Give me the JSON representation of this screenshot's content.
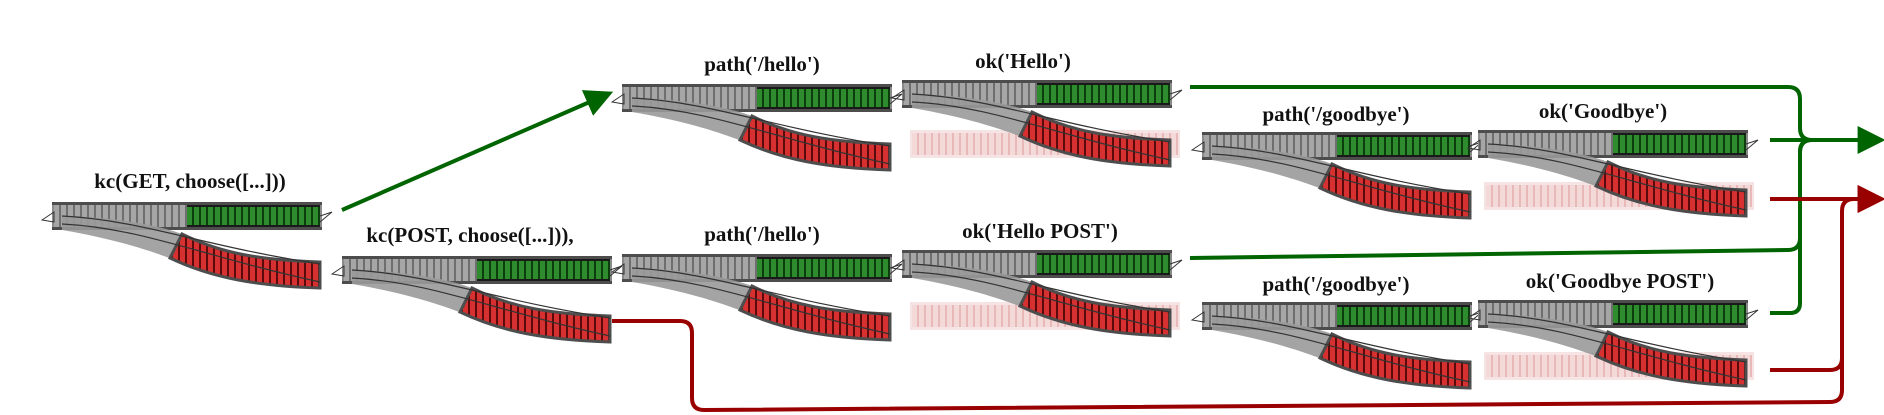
{
  "labels": {
    "get_kc": "kc(GET, choose([...]))",
    "post_kc": "kc(POST, choose([...])),",
    "path_hello_top": "path('/hello')",
    "ok_hello": "ok('Hello')",
    "path_hello_bottom": "path('/hello')",
    "ok_hello_post": "ok('Hello POST')",
    "path_goodbye_top": "path('/goodbye')",
    "ok_goodbye": "ok('Goodbye')",
    "path_goodbye_bottom": "path('/goodbye')",
    "ok_goodbye_post": "ok('Goodbye POST')"
  },
  "colors": {
    "success": "#006400",
    "failure": "#990000",
    "success_track": "#2e8b2e",
    "failure_track": "#d63030",
    "neutral_track": "#9a9a9a"
  }
}
